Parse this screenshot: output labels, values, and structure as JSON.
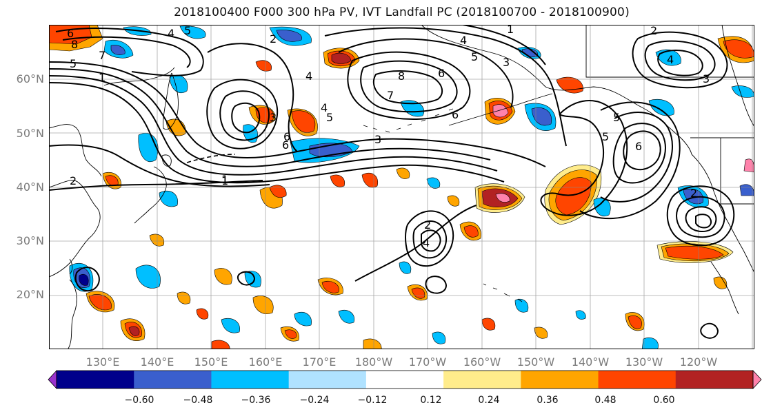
{
  "title": "2018100400 F000 300 hPa PV, IVT Landfall PC (2018100700 - 2018100900)",
  "lat_labels": [
    "20°N",
    "30°N",
    "40°N",
    "50°N",
    "60°N"
  ],
  "lon_labels": [
    "130°E",
    "140°E",
    "150°E",
    "160°E",
    "170°E",
    "180°W",
    "170°W",
    "160°W",
    "150°W",
    "140°W",
    "130°W",
    "120°W"
  ],
  "colorbar": {
    "tick_labels": [
      "−0.60",
      "−0.48",
      "−0.36",
      "−0.24",
      "−0.12",
      "0.12",
      "0.24",
      "0.36",
      "0.48",
      "0.60"
    ],
    "colors": [
      "#9932CC",
      "#00008B",
      "#3A5FCD",
      "#00BFFF",
      "#B0E2FF",
      "#FFFFFF",
      "#FFEC8B",
      "#FFA500",
      "#FF4500",
      "#B22222",
      "#FF82AB"
    ]
  },
  "map": {
    "extent": {
      "lon_min": 121,
      "lon_max": 250,
      "lat_min": 10,
      "lat_max": 70
    },
    "gridlines": true,
    "contour_labels": [
      "6",
      "8",
      "7",
      "5",
      "1",
      "4",
      "5",
      "3",
      "2",
      "1",
      "2",
      "4",
      "5",
      "3",
      "4",
      "6",
      "8",
      "7",
      "6",
      "6",
      "5",
      "4",
      "3",
      "6",
      "5",
      "2",
      "1",
      "4",
      "3",
      "2",
      "1",
      "5",
      "6",
      "2",
      "4"
    ]
  }
}
